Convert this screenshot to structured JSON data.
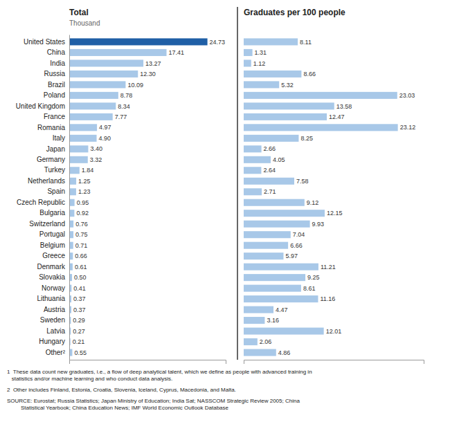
{
  "chart_data": [
    {
      "type": "bar",
      "orientation": "horizontal",
      "title": "Total",
      "subtitle": "Thousand",
      "categories": [
        "United States",
        "China",
        "India",
        "Russia",
        "Brazil",
        "Poland",
        "United Kingdom",
        "France",
        "Romania",
        "Italy",
        "Japan",
        "Germany",
        "Turkey",
        "Netherlands",
        "Spain",
        "Czech Republic",
        "Bulgaria",
        "Switzerland",
        "Portugal",
        "Belgium",
        "Greece",
        "Denmark",
        "Slovakia",
        "Norway",
        "Lithuania",
        "Austria",
        "Sweden",
        "Latvia",
        "Hungary",
        "Other²"
      ],
      "values": [
        24.73,
        17.41,
        13.27,
        12.3,
        10.09,
        8.78,
        8.34,
        7.77,
        4.97,
        4.9,
        3.4,
        3.32,
        1.84,
        1.25,
        1.23,
        0.95,
        0.92,
        0.76,
        0.75,
        0.71,
        0.66,
        0.61,
        0.5,
        0.41,
        0.37,
        0.37,
        0.29,
        0.27,
        0.21,
        0.55
      ],
      "value_labels": [
        "24.73",
        "17.41",
        "13.27",
        "12.30",
        "10.09",
        "8.78",
        "8.34",
        "7.77",
        "4.97",
        "4.90",
        "3.40",
        "3.32",
        "1.84",
        "1.25",
        "1.23",
        "0.95",
        "0.92",
        "0.76",
        "0.75",
        "0.71",
        "0.66",
        "0.61",
        "0.50",
        "0.41",
        "0.37",
        "0.37",
        "0.29",
        "0.27",
        "0.21",
        "0.55"
      ],
      "colors": [
        "#1f5fa6",
        "#a8c8e8",
        "#a8c8e8",
        "#a8c8e8",
        "#a8c8e8",
        "#a8c8e8",
        "#a8c8e8",
        "#a8c8e8",
        "#a8c8e8",
        "#a8c8e8",
        "#a8c8e8",
        "#a8c8e8",
        "#a8c8e8",
        "#a8c8e8",
        "#a8c8e8",
        "#a8c8e8",
        "#a8c8e8",
        "#a8c8e8",
        "#a8c8e8",
        "#a8c8e8",
        "#a8c8e8",
        "#a8c8e8",
        "#a8c8e8",
        "#a8c8e8",
        "#a8c8e8",
        "#a8c8e8",
        "#a8c8e8",
        "#a8c8e8",
        "#a8c8e8",
        "#a8c8e8"
      ],
      "xlim": [
        0,
        28.0
      ],
      "data_labels": true,
      "tick_labels": "y",
      "annotations": [
        "1  These data count new graduates, i.e., a flow of deep analytical talent, which we define as people with advanced training in\n   statistics and/or machine learning and who conduct data analysis.",
        "2  Other includes Finland, Estonia, Croatia, Slovenia, Iceland, Cyprus, Macedonia, and Malta.",
        "SOURCE: Eurostat; Russia Statistics; Japan Ministry of Education; India Sat; NASSCOM Strategic Review 2005; China\n         Statistical Yearbook; China Education News; IMF World Economic Outlook Database"
      ]
    },
    {
      "type": "bar",
      "orientation": "horizontal",
      "title": "Graduates per 100 people",
      "categories": [
        "United States",
        "China",
        "India",
        "Russia",
        "Brazil",
        "Poland",
        "United Kingdom",
        "France",
        "Romania",
        "Italy",
        "Japan",
        "Germany",
        "Turkey",
        "Netherlands",
        "Spain",
        "Czech Republic",
        "Bulgaria",
        "Switzerland",
        "Portugal",
        "Belgium",
        "Greece",
        "Denmark",
        "Slovakia",
        "Norway",
        "Lithuania",
        "Austria",
        "Sweden",
        "Latvia",
        "Hungary",
        "Other²"
      ],
      "values": [
        8.11,
        1.31,
        1.12,
        8.66,
        5.32,
        23.03,
        13.58,
        12.47,
        23.12,
        8.25,
        2.66,
        4.05,
        2.64,
        7.58,
        2.71,
        9.12,
        12.15,
        9.93,
        7.04,
        6.66,
        5.97,
        11.21,
        9.25,
        8.61,
        11.16,
        4.47,
        3.16,
        12.01,
        2.06,
        4.86
      ],
      "value_labels": [
        "8.11",
        "1.31",
        "1.12",
        "8.66",
        "5.32",
        "23.03",
        "13.58",
        "12.47",
        "23.12",
        "8.25",
        "2.66",
        "4.05",
        "2.64",
        "7.58",
        "2.71",
        "9.12",
        "12.15",
        "9.93",
        "7.04",
        "6.66",
        "5.97",
        "11.21",
        "9.25",
        "8.61",
        "11.16",
        "4.47",
        "3.16",
        "12.01",
        "2.06",
        "4.86"
      ],
      "color": "#a8c8e8",
      "xlim": [
        0,
        27.0
      ],
      "data_labels": true,
      "tick_labels": false
    }
  ]
}
